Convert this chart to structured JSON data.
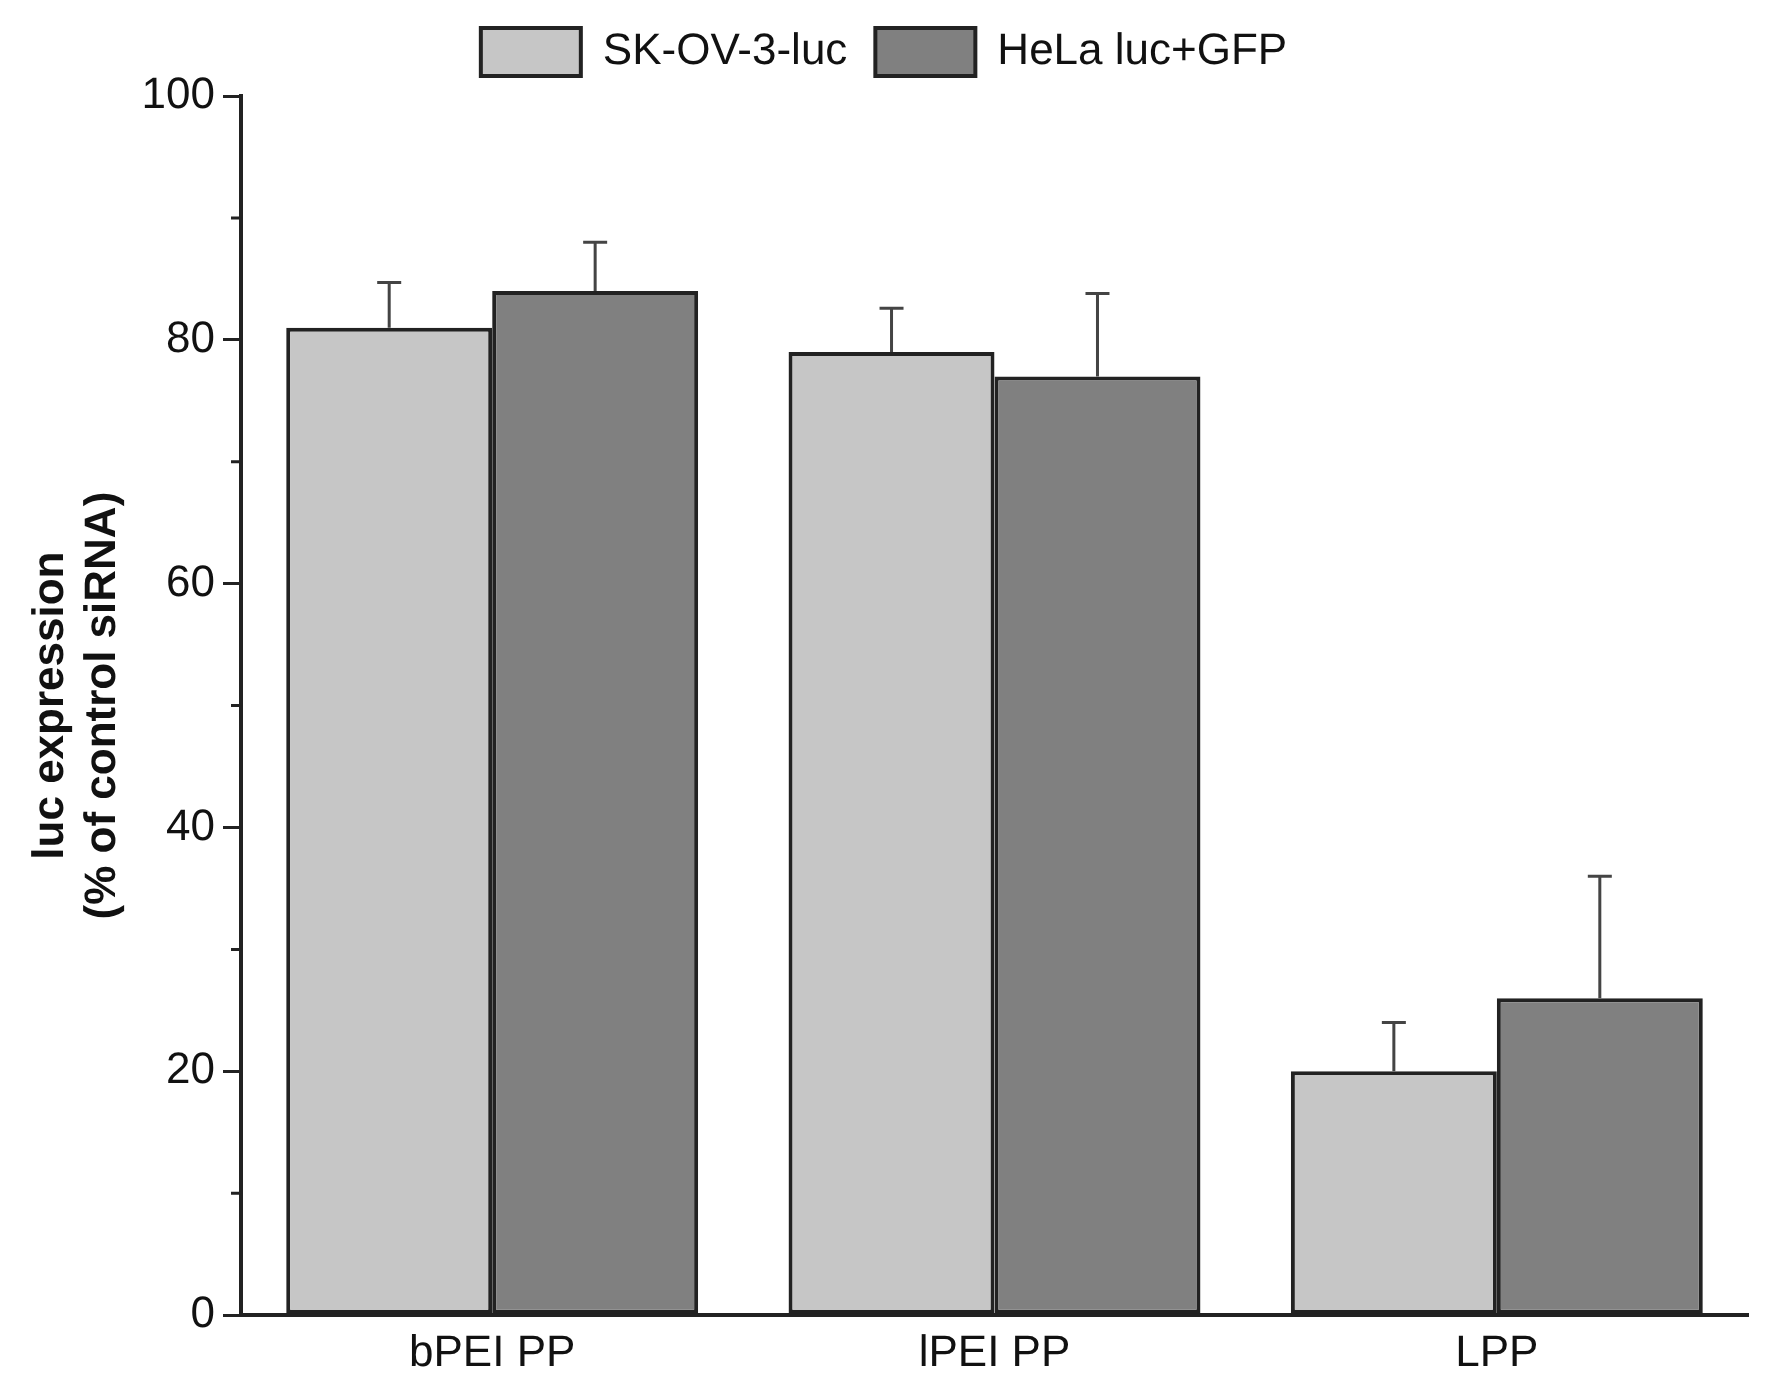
{
  "chart_data": {
    "type": "bar",
    "ylabel": "luc expression\n(% of control siRNA)",
    "categories": [
      "bPEI PP",
      "lPEI PP",
      "LPP"
    ],
    "series": [
      {
        "name": "SK-OV-3-luc",
        "color": "#c6c6c6",
        "values": [
          81,
          79,
          20
        ],
        "errors": [
          [
            81,
            84.7
          ],
          [
            79,
            82.6
          ],
          [
            20,
            24
          ]
        ]
      },
      {
        "name": "HeLa luc+GFP",
        "color": "#808080",
        "values": [
          84,
          77,
          26
        ],
        "errors": [
          [
            84,
            88
          ],
          [
            77,
            83.8
          ],
          [
            26,
            36
          ]
        ]
      }
    ],
    "ylim": [
      0,
      100
    ],
    "yticks": [
      0,
      20,
      40,
      60,
      80,
      100
    ],
    "grid": false,
    "legend": "top"
  }
}
